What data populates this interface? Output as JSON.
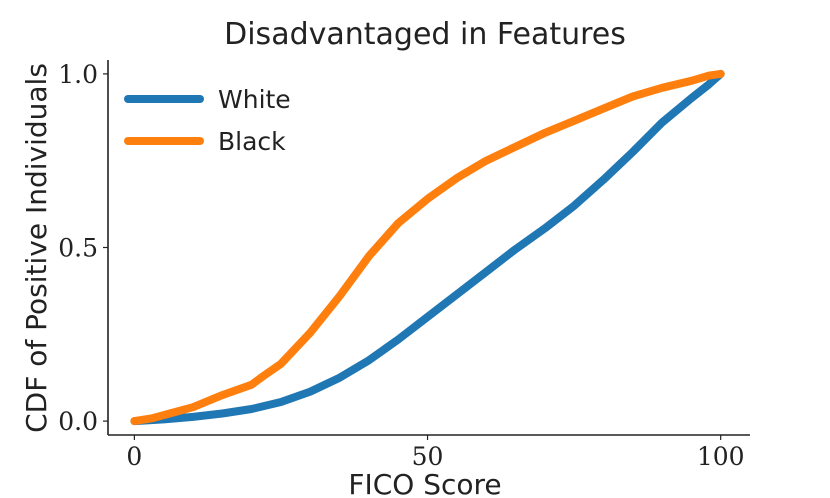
{
  "chart_data": {
    "type": "line",
    "title": "Disadvantaged in Features",
    "xlabel": "FICO Score",
    "ylabel": "CDF of Positive Individuals",
    "xlim": [
      -4.5,
      105
    ],
    "ylim": [
      -0.04,
      1.04
    ],
    "xticks": [
      0,
      50,
      100
    ],
    "xtick_labels": [
      "0",
      "50",
      "100"
    ],
    "yticks": [
      0,
      0.5,
      1
    ],
    "ytick_labels": [
      "0.0",
      "0.5",
      "1.0"
    ],
    "grid": false,
    "legend_position": "top-left",
    "series": [
      {
        "name": "White",
        "color": "#1f77b4",
        "x": [
          0,
          5,
          10,
          15,
          20,
          25,
          30,
          35,
          40,
          45,
          50,
          55,
          60,
          65,
          70,
          75,
          80,
          85,
          90,
          95,
          98,
          100
        ],
        "y": [
          0.0,
          0.005,
          0.012,
          0.022,
          0.035,
          0.055,
          0.085,
          0.125,
          0.175,
          0.235,
          0.3,
          0.365,
          0.43,
          0.495,
          0.555,
          0.62,
          0.695,
          0.775,
          0.86,
          0.93,
          0.97,
          1.0
        ]
      },
      {
        "name": "Black",
        "color": "#ff7f0e",
        "x": [
          0,
          3,
          6,
          10,
          15,
          20,
          22,
          25,
          30,
          35,
          40,
          45,
          50,
          55,
          60,
          65,
          70,
          75,
          80,
          85,
          90,
          95,
          98,
          100
        ],
        "y": [
          0.0,
          0.008,
          0.022,
          0.04,
          0.075,
          0.105,
          0.13,
          0.165,
          0.255,
          0.36,
          0.475,
          0.57,
          0.64,
          0.7,
          0.75,
          0.79,
          0.83,
          0.865,
          0.9,
          0.935,
          0.96,
          0.98,
          0.995,
          1.0
        ]
      }
    ]
  }
}
